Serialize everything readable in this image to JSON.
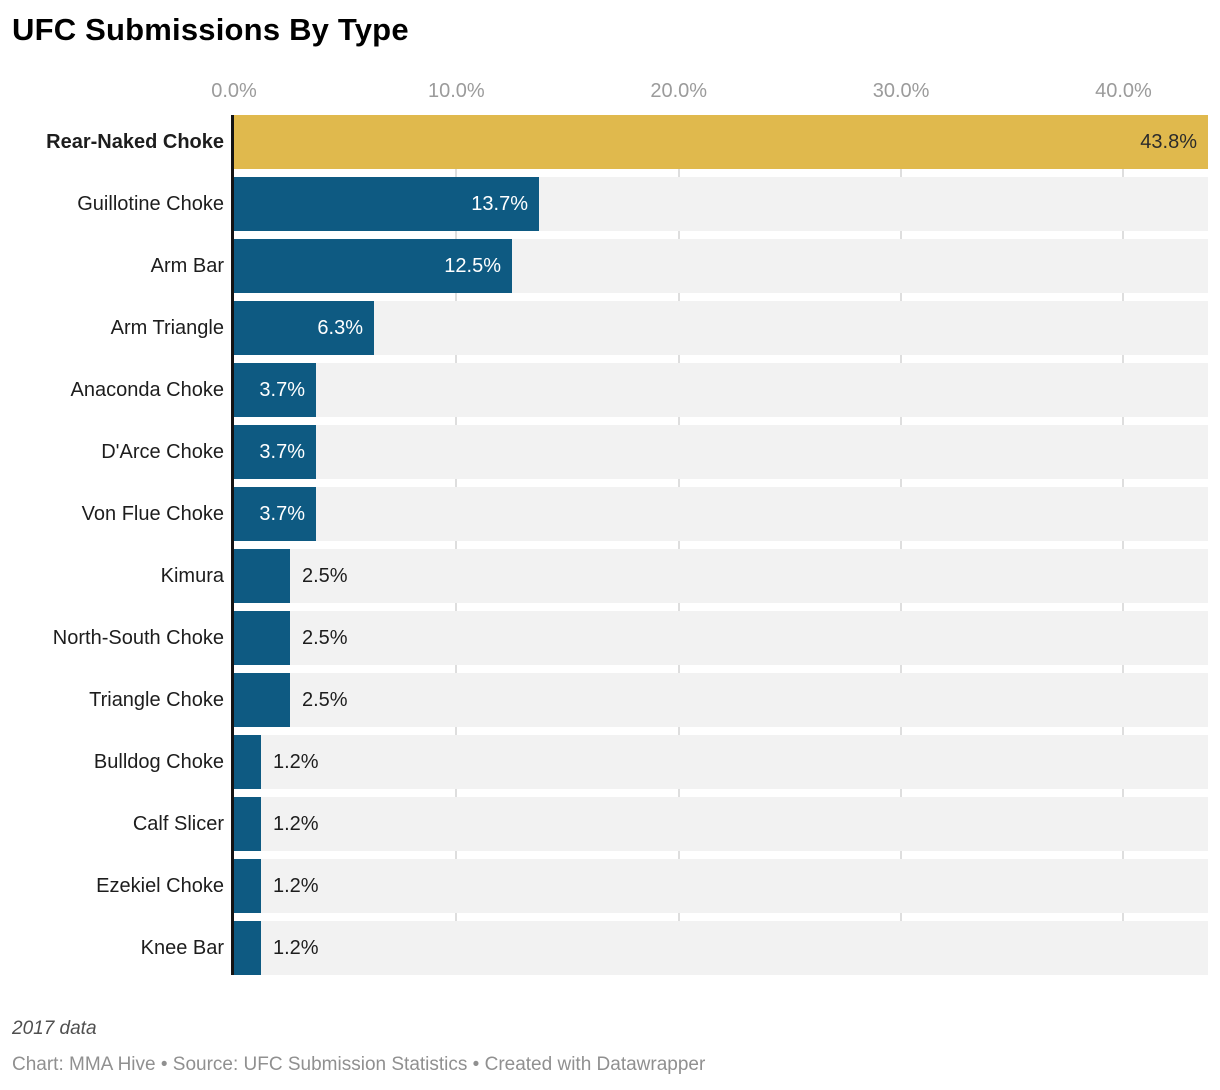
{
  "title": "UFC Submissions By Type",
  "notes": "2017 data",
  "footer": "Chart: MMA Hive • Source: UFC Submission Statistics • Created with Datawrapper",
  "chart_data": {
    "type": "bar",
    "orientation": "horizontal",
    "title": "UFC Submissions By Type",
    "xlabel": "",
    "ylabel": "",
    "xlim": [
      0,
      43.8
    ],
    "grid": "vertical",
    "legend": "none",
    "categories": [
      "Rear-Naked Choke",
      "Guillotine Choke",
      "Arm Bar",
      "Arm Triangle",
      "Anaconda Choke",
      "D'Arce Choke",
      "Von Flue Choke",
      "Kimura",
      "North-South Choke",
      "Triangle Choke",
      "Bulldog Choke",
      "Calf Slicer",
      "Ezekiel Choke",
      "Knee Bar"
    ],
    "values": [
      43.8,
      13.7,
      12.5,
      6.3,
      3.7,
      3.7,
      3.7,
      2.5,
      2.5,
      2.5,
      1.2,
      1.2,
      1.2,
      1.2
    ],
    "value_labels": [
      "43.8%",
      "13.7%",
      "12.5%",
      "6.3%",
      "3.7%",
      "3.7%",
      "3.7%",
      "2.5%",
      "2.5%",
      "2.5%",
      "1.2%",
      "1.2%",
      "1.2%",
      "1.2%"
    ],
    "x_ticks": [
      {
        "value": 0,
        "label": "0.0%"
      },
      {
        "value": 10,
        "label": "10.0%"
      },
      {
        "value": 20,
        "label": "20.0%"
      },
      {
        "value": 30,
        "label": "30.0%"
      },
      {
        "value": 40,
        "label": "40.0%"
      }
    ],
    "highlight_index": 0,
    "colors": {
      "bar": "#0e5a82",
      "highlight_bar": "#e0b94d",
      "row_background": "#f2f2f2",
      "gridline": "#dedede",
      "axis_line": "#141414",
      "value_inside": "#ffffff",
      "value_on_highlight": "#2b2b2b",
      "value_outside": "#1d1d1d",
      "category_label": "#1d1d1d",
      "tick_label": "#9b9b9b"
    }
  }
}
